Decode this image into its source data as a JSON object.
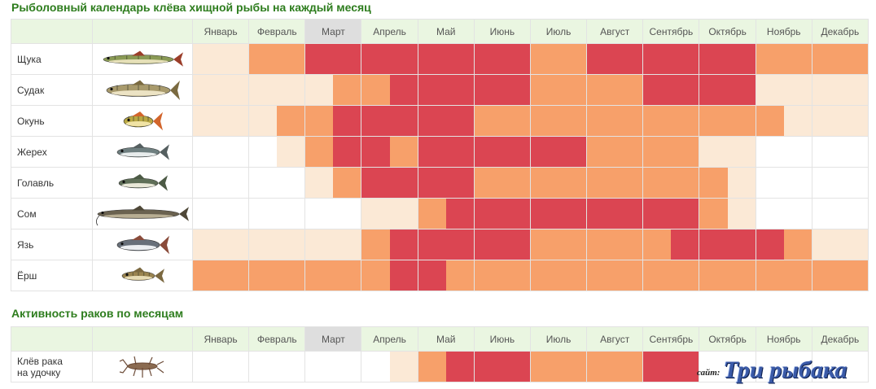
{
  "titles": {
    "main": "Рыболовный календарь клёва хищной рыбы на каждый месяц",
    "crayfish": "Активность раков по месяцам"
  },
  "months": [
    "Январь",
    "Февраль",
    "Март",
    "Апрель",
    "Май",
    "Июнь",
    "Июль",
    "Август",
    "Сентябрь",
    "Октябрь",
    "Ноябрь",
    "Декабрь"
  ],
  "current_month_index": 2,
  "activity_legend": {
    "0": "#ffffff",
    "1": "#fbe9d6",
    "2": "#f7a06a",
    "3": "#db4552"
  },
  "fish": [
    {
      "name": "Щука",
      "icon": "pike-icon",
      "levels": [
        [
          1,
          1
        ],
        [
          2,
          2
        ],
        [
          3,
          3
        ],
        [
          3,
          3
        ],
        [
          3,
          3
        ],
        [
          3,
          3
        ],
        [
          2,
          2
        ],
        [
          3,
          3
        ],
        [
          3,
          3
        ],
        [
          3,
          3
        ],
        [
          2,
          2
        ],
        [
          2,
          2
        ]
      ]
    },
    {
      "name": "Судак",
      "icon": "zander-icon",
      "levels": [
        [
          1,
          1
        ],
        [
          1,
          1
        ],
        [
          1,
          2
        ],
        [
          2,
          3
        ],
        [
          3,
          3
        ],
        [
          3,
          3
        ],
        [
          2,
          2
        ],
        [
          2,
          2
        ],
        [
          3,
          3
        ],
        [
          3,
          3
        ],
        [
          1,
          1
        ],
        [
          1,
          1
        ]
      ]
    },
    {
      "name": "Окунь",
      "icon": "perch-icon",
      "levels": [
        [
          1,
          1
        ],
        [
          1,
          2
        ],
        [
          2,
          3
        ],
        [
          3,
          3
        ],
        [
          3,
          3
        ],
        [
          2,
          2
        ],
        [
          2,
          2
        ],
        [
          2,
          2
        ],
        [
          2,
          2
        ],
        [
          2,
          2
        ],
        [
          2,
          1
        ],
        [
          1,
          1
        ]
      ]
    },
    {
      "name": "Жерех",
      "icon": "asp-icon",
      "levels": [
        [
          0,
          0
        ],
        [
          0,
          1
        ],
        [
          2,
          3
        ],
        [
          3,
          2
        ],
        [
          3,
          3
        ],
        [
          3,
          3
        ],
        [
          3,
          3
        ],
        [
          2,
          2
        ],
        [
          2,
          2
        ],
        [
          1,
          1
        ],
        [
          0,
          0
        ],
        [
          0,
          0
        ]
      ]
    },
    {
      "name": "Голавль",
      "icon": "chub-icon",
      "levels": [
        [
          0,
          0
        ],
        [
          0,
          0
        ],
        [
          1,
          2
        ],
        [
          3,
          3
        ],
        [
          3,
          3
        ],
        [
          2,
          2
        ],
        [
          2,
          2
        ],
        [
          2,
          2
        ],
        [
          2,
          2
        ],
        [
          2,
          1
        ],
        [
          0,
          0
        ],
        [
          0,
          0
        ]
      ]
    },
    {
      "name": "Сом",
      "icon": "catfish-icon",
      "levels": [
        [
          0,
          0
        ],
        [
          0,
          0
        ],
        [
          0,
          0
        ],
        [
          1,
          1
        ],
        [
          2,
          3
        ],
        [
          3,
          3
        ],
        [
          3,
          3
        ],
        [
          3,
          3
        ],
        [
          3,
          3
        ],
        [
          2,
          1
        ],
        [
          0,
          0
        ],
        [
          0,
          0
        ]
      ]
    },
    {
      "name": "Язь",
      "icon": "ide-icon",
      "levels": [
        [
          1,
          1
        ],
        [
          1,
          1
        ],
        [
          1,
          1
        ],
        [
          2,
          3
        ],
        [
          3,
          3
        ],
        [
          3,
          3
        ],
        [
          2,
          2
        ],
        [
          2,
          2
        ],
        [
          2,
          3
        ],
        [
          3,
          3
        ],
        [
          3,
          2
        ],
        [
          1,
          1
        ]
      ]
    },
    {
      "name": "Ёрш",
      "icon": "ruffe-icon",
      "levels": [
        [
          2,
          2
        ],
        [
          2,
          2
        ],
        [
          2,
          2
        ],
        [
          2,
          3
        ],
        [
          3,
          2
        ],
        [
          2,
          2
        ],
        [
          2,
          2
        ],
        [
          2,
          2
        ],
        [
          2,
          2
        ],
        [
          2,
          2
        ],
        [
          2,
          2
        ],
        [
          2,
          2
        ]
      ]
    }
  ],
  "crayfish": {
    "label_line1": "Клёв рака",
    "label_line2": "на удочку",
    "icon": "crayfish-icon",
    "levels": [
      [
        0,
        0
      ],
      [
        0,
        0
      ],
      [
        0,
        0
      ],
      [
        0,
        1
      ],
      [
        2,
        3
      ],
      [
        3,
        3
      ],
      [
        2,
        2
      ],
      [
        2,
        2
      ],
      [
        3,
        3
      ],
      [
        0,
        0
      ],
      [
        0,
        0
      ],
      [
        0,
        0
      ]
    ]
  },
  "watermark": {
    "prefix": "сайт:",
    "text": "Три рыбака"
  }
}
